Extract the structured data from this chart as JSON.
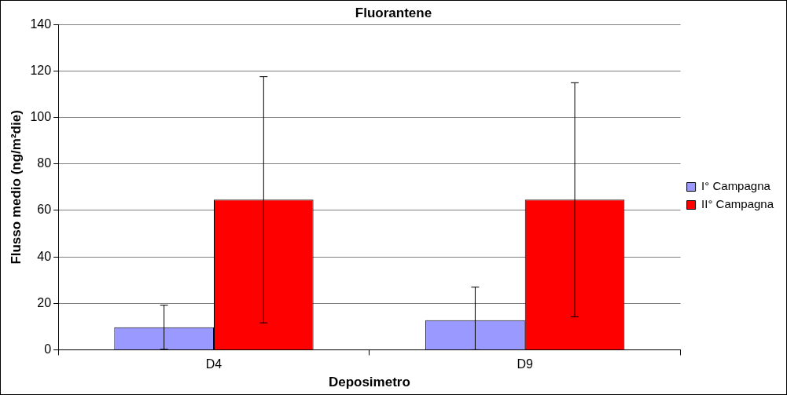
{
  "chart_data": {
    "type": "bar",
    "title": "Fluorantene",
    "xlabel": "Deposimetro",
    "ylabel": "Flusso medio (ng/m²die)",
    "categories": [
      "D4",
      "D9"
    ],
    "series": [
      {
        "name": "I° Campagna",
        "color": "#9999ff",
        "values": [
          9.7,
          12.7
        ],
        "errors": [
          9.5,
          [
            0,
            27
          ]
        ]
      },
      {
        "name": "II° Campagna",
        "color": "#ff0000",
        "values": [
          64.6,
          64.6
        ],
        "errors": [
          53,
          50.4
        ]
      }
    ],
    "ylim": [
      0,
      140
    ],
    "yticks": [
      0,
      20,
      40,
      60,
      80,
      100,
      120,
      140
    ],
    "grid": "y",
    "legend": "right"
  }
}
